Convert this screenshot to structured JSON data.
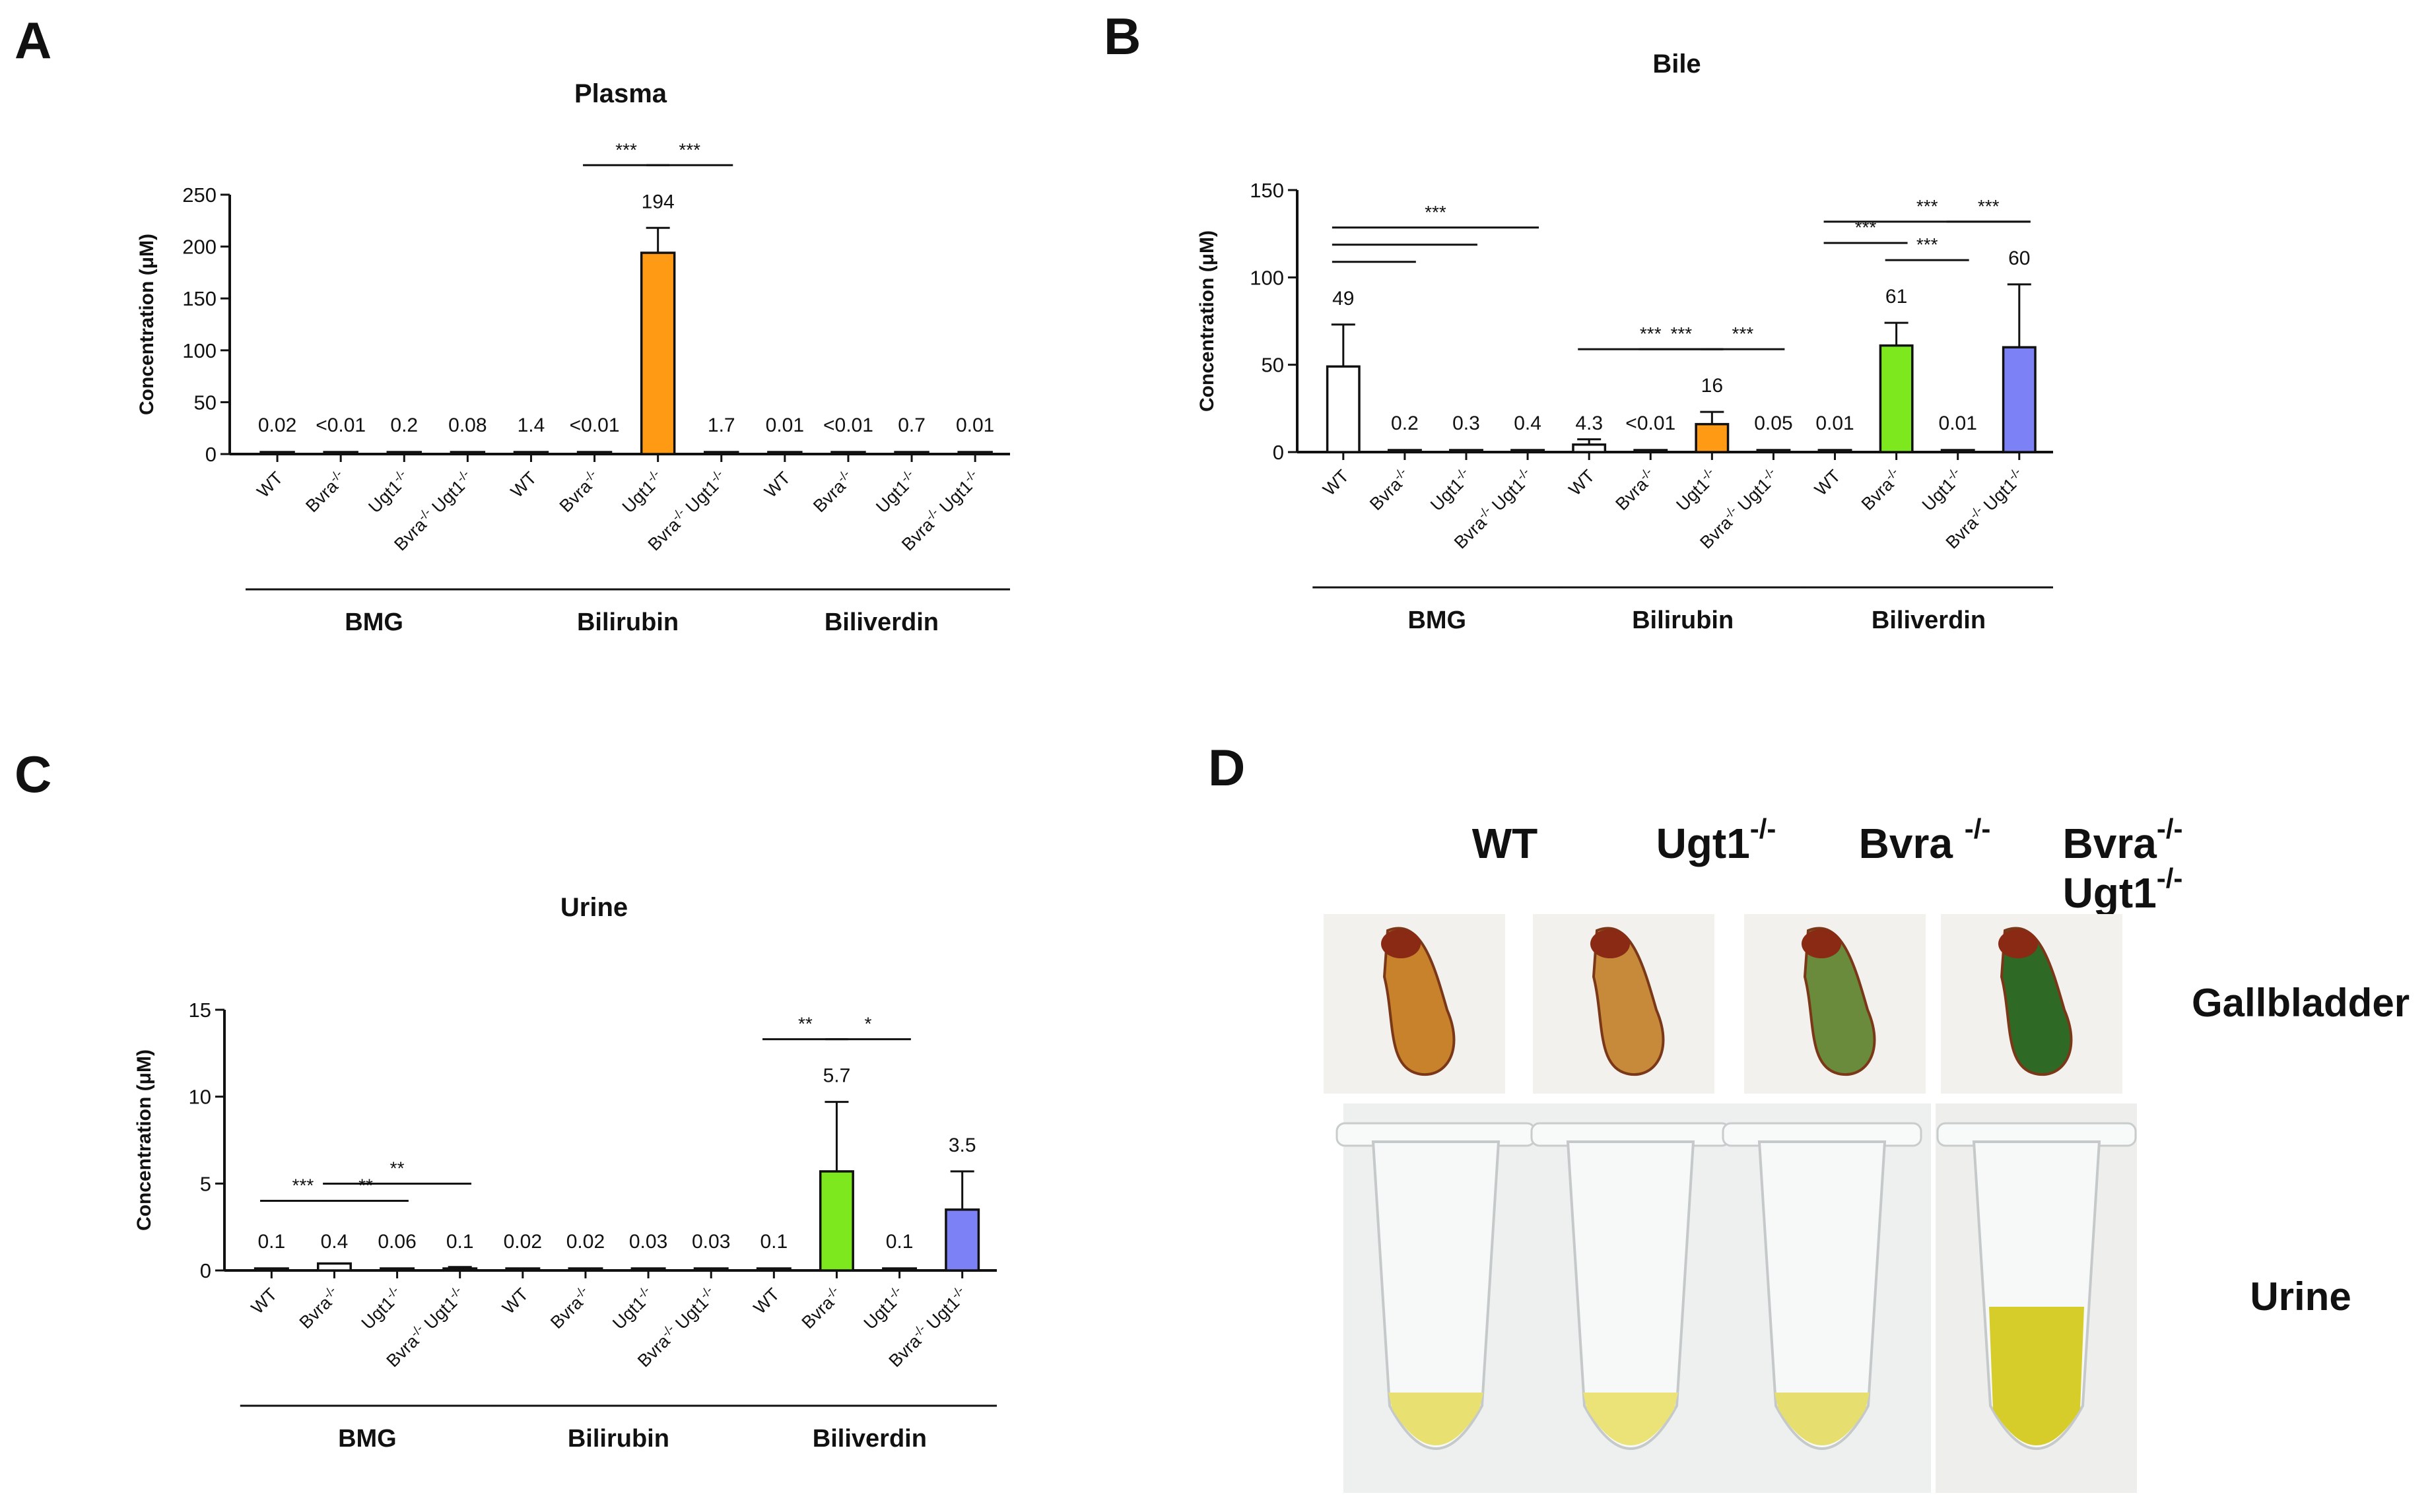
{
  "panel_labels": [
    "A",
    "B",
    "C",
    "D"
  ],
  "chart_data": [
    {
      "type": "bar",
      "panel": "A",
      "title": "Plasma",
      "ylabel": "Concentration (μM)",
      "ylim": [
        0,
        250
      ],
      "yticks": [
        0,
        50,
        100,
        150,
        200,
        250
      ],
      "categories": [
        "WT",
        "Bvra-/-",
        "Ugt1-/-",
        "Bvra-/- Ugt1-/-",
        "WT",
        "Bvra-/-",
        "Ugt1-/-",
        "Bvra-/- Ugt1-/-",
        "WT",
        "Bvra-/-",
        "Ugt1-/-",
        "Bvra-/- Ugt1-/-"
      ],
      "groups": [
        "BMG",
        "Bilirubin",
        "Biliverdin"
      ],
      "values": [
        0.02,
        0.005,
        0.2,
        0.08,
        1.4,
        0.005,
        194,
        1.7,
        0.01,
        0.005,
        0.7,
        0.01
      ],
      "errors": [
        0,
        0,
        0,
        0,
        0,
        0,
        24,
        0,
        0,
        0,
        0,
        0
      ],
      "value_labels": [
        "0.02",
        "<0.01",
        "0.2",
        "0.08",
        "1.4",
        "<0.01",
        "194",
        "1.7",
        "0.01",
        "<0.01",
        "0.7",
        "0.01"
      ],
      "colors": [
        "#ffffff",
        "#ffffff",
        "#ffffff",
        "#ffffff",
        "#ffffff",
        "#ffffff",
        "#ff9a14",
        "#ffffff",
        "#ffffff",
        "#ffffff",
        "#ffffff",
        "#ffffff"
      ],
      "significance": [
        {
          "from": 5,
          "to": 6,
          "label": "***"
        },
        {
          "from": 6,
          "to": 7,
          "label": "***"
        }
      ]
    },
    {
      "type": "bar",
      "panel": "B",
      "title": "Bile",
      "ylabel": "Concentration (μM)",
      "ylim": [
        0,
        150
      ],
      "yticks": [
        0,
        50,
        100,
        150
      ],
      "categories": [
        "WT",
        "Bvra-/-",
        "Ugt1-/-",
        "Bvra-/- Ugt1-/-",
        "WT",
        "Bvra-/-",
        "Ugt1-/-",
        "Bvra-/- Ugt1-/-",
        "WT",
        "Bvra-/-",
        "Ugt1-/-",
        "Bvra-/- Ugt1-/-"
      ],
      "groups": [
        "BMG",
        "Bilirubin",
        "Biliverdin"
      ],
      "values": [
        49,
        0.2,
        0.3,
        0.4,
        4.3,
        0.005,
        16,
        0.05,
        0.01,
        61,
        0.01,
        60
      ],
      "errors": [
        24,
        0,
        0,
        0,
        3,
        0,
        7,
        0,
        0,
        13,
        0,
        36
      ],
      "value_labels": [
        "49",
        "0.2",
        "0.3",
        "0.4",
        "4.3",
        "<0.01",
        "16",
        "0.05",
        "0.01",
        "61",
        "0.01",
        "60"
      ],
      "colors": [
        "#ffffff",
        "#ffffff",
        "#ffffff",
        "#ffffff",
        "#ffffff",
        "#ffffff",
        "#ff9a14",
        "#ffffff",
        "#ffffff",
        "#7ee81e",
        "#ffffff",
        "#7c82f5"
      ],
      "significance": [
        {
          "from": 0,
          "to": 1,
          "label": ""
        },
        {
          "from": 0,
          "to": 2,
          "label": ""
        },
        {
          "from": 0,
          "to": 3,
          "label": "***"
        },
        {
          "from": 4,
          "to": 6,
          "label": "***"
        },
        {
          "from": 5,
          "to": 6,
          "label": "***"
        },
        {
          "from": 6,
          "to": 7,
          "label": "***"
        },
        {
          "from": 8,
          "to": 11,
          "label": "***"
        },
        {
          "from": 8,
          "to": 9,
          "label": "***"
        },
        {
          "from": 9,
          "to": 10,
          "label": "***"
        },
        {
          "from": 10,
          "to": 11,
          "label": "***"
        }
      ]
    },
    {
      "type": "bar",
      "panel": "C",
      "title": "Urine",
      "ylabel": "Concentration (μM)",
      "ylim": [
        0,
        15
      ],
      "yticks": [
        0,
        5,
        10,
        15
      ],
      "categories": [
        "WT",
        "Bvra-/-",
        "Ugt1-/-",
        "Bvra-/- Ugt1-/-",
        "WT",
        "Bvra-/-",
        "Ugt1-/-",
        "Bvra-/- Ugt1-/-",
        "WT",
        "Bvra-/-",
        "Ugt1-/-",
        "Bvra-/- Ugt1-/-"
      ],
      "groups": [
        "BMG",
        "Bilirubin",
        "Biliverdin"
      ],
      "values": [
        0.1,
        0.4,
        0.06,
        0.1,
        0.02,
        0.02,
        0.03,
        0.03,
        0.1,
        5.7,
        0.1,
        3.5
      ],
      "errors": [
        0,
        0,
        0,
        0.1,
        0,
        0,
        0,
        0,
        0,
        4,
        0,
        2.2
      ],
      "value_labels": [
        "0.1",
        "0.4",
        "0.06",
        "0.1",
        "0.02",
        "0.02",
        "0.03",
        "0.03",
        "0.1",
        "5.7",
        "0.1",
        "3.5"
      ],
      "colors": [
        "#ffffff",
        "#ffffff",
        "#ffffff",
        "#ffffff",
        "#ffffff",
        "#ffffff",
        "#ffffff",
        "#ffffff",
        "#ffffff",
        "#7ee81e",
        "#ffffff",
        "#7c82f5"
      ],
      "significance": [
        {
          "from": 0,
          "to": 1,
          "label": "***"
        },
        {
          "from": 1,
          "to": 2,
          "label": "**"
        },
        {
          "from": 1,
          "to": 3,
          "label": "**"
        },
        {
          "from": 8,
          "to": 9,
          "label": "**"
        },
        {
          "from": 9,
          "to": 10,
          "label": "*"
        }
      ]
    }
  ],
  "photo_panel": {
    "columns": [
      {
        "name": "WT",
        "sup": "",
        "line2": "",
        "gallbladder": "#c8822c",
        "urine": "#e8e070"
      },
      {
        "name": "Ugt1",
        "sup": "-/-",
        "line2": "",
        "gallbladder": "#c68a3a",
        "urine": "#ebe278"
      },
      {
        "name": "Bvra ",
        "sup": "-/-",
        "line2": "",
        "gallbladder": "#6a8a3c",
        "urine": "#e6de6e"
      },
      {
        "name": "Bvra",
        "sup": "-/-",
        "line2": "Ugt1",
        "line2_sup": "-/-",
        "gallbladder": "#2e6a26",
        "urine": "#d6cc2a"
      }
    ],
    "row_labels": [
      "Gallbladder",
      "Urine"
    ]
  }
}
